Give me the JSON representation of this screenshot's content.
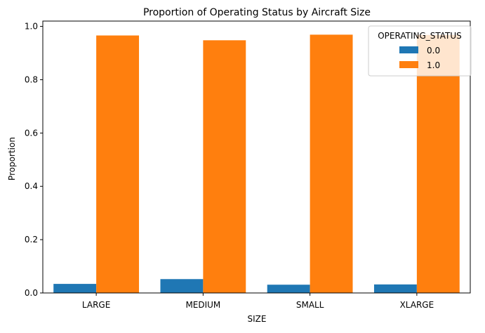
{
  "chart_data": {
    "type": "bar",
    "title": "Proportion of Operating Status by Aircraft Size",
    "xlabel": "SIZE",
    "ylabel": "Proportion",
    "categories": [
      "LARGE",
      "MEDIUM",
      "SMALL",
      "XLARGE"
    ],
    "series": [
      {
        "name": "0.0",
        "color": "#1f77b4",
        "values": [
          0.034,
          0.052,
          0.031,
          0.032
        ]
      },
      {
        "name": "1.0",
        "color": "#ff7f0e",
        "values": [
          0.966,
          0.948,
          0.969,
          0.968
        ]
      }
    ],
    "ylim": [
      0,
      1.02
    ],
    "yticks": [
      "0.0",
      "0.2",
      "0.4",
      "0.6",
      "0.8",
      "1.0"
    ],
    "legend": {
      "title": "OPERATING_STATUS",
      "placement": "top-right"
    },
    "grid": false
  }
}
